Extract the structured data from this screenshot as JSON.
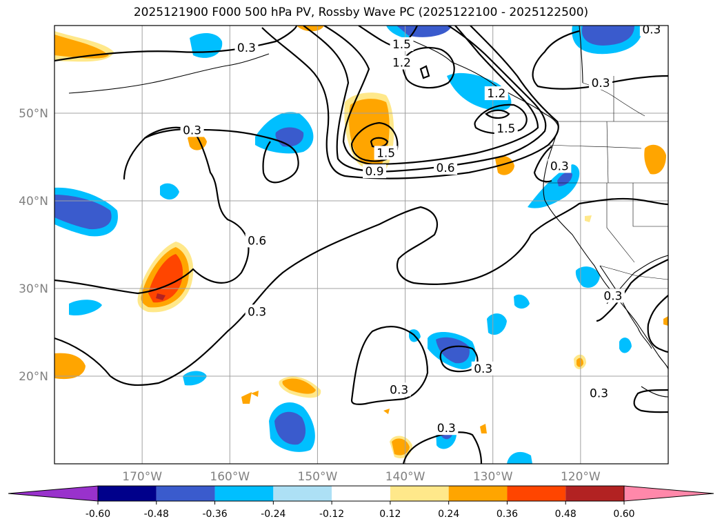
{
  "title": "2025121900 F000 500 hPa PV, Rossby Wave PC (2025122100 - 2025122500)",
  "map": {
    "lon_range": [
      -180,
      -110
    ],
    "lat_range": [
      10,
      60
    ],
    "lon_ticks": [
      {
        "value": -170,
        "label": "170°W"
      },
      {
        "value": -160,
        "label": "160°W"
      },
      {
        "value": -150,
        "label": "150°W"
      },
      {
        "value": -140,
        "label": "140°W"
      },
      {
        "value": -130,
        "label": "130°W"
      },
      {
        "value": -120,
        "label": "120°W"
      }
    ],
    "lat_ticks": [
      {
        "value": 20,
        "label": "20°N"
      },
      {
        "value": 30,
        "label": "30°N"
      },
      {
        "value": 40,
        "label": "40°N"
      },
      {
        "value": 50,
        "label": "50°N"
      }
    ],
    "tick_label_color": "#808080",
    "grid_color": "#a0a0a0"
  },
  "colorbar": {
    "ticks": [
      "-0.60",
      "-0.48",
      "-0.36",
      "-0.24",
      "-0.12",
      "0.12",
      "0.24",
      "0.36",
      "0.48",
      "0.60"
    ],
    "colors": [
      "#9932cc",
      "#00008b",
      "#3a5bcd",
      "#00bfff",
      "#ade0f5",
      "#ffffff",
      "#ffe88a",
      "#ffa500",
      "#ff4500",
      "#b22222",
      "#ff88aa"
    ]
  },
  "contour_labels": [
    {
      "text": "1.5",
      "lon": -140.4,
      "lat": 57.8
    },
    {
      "text": "1.2",
      "lon": -140.4,
      "lat": 55.7
    },
    {
      "text": "0.3",
      "lon": -158.1,
      "lat": 57.4
    },
    {
      "text": "0.3",
      "lon": -117.7,
      "lat": 53.4
    },
    {
      "text": "0.3",
      "lon": -111.9,
      "lat": 59.5
    },
    {
      "text": "1.2",
      "lon": -129.6,
      "lat": 52.2
    },
    {
      "text": "1.5",
      "lon": -128.5,
      "lat": 48.2
    },
    {
      "text": "0.3",
      "lon": -164.3,
      "lat": 48.0
    },
    {
      "text": "1.5",
      "lon": -142.2,
      "lat": 45.4
    },
    {
      "text": "0.9",
      "lon": -143.5,
      "lat": 43.3
    },
    {
      "text": "0.6",
      "lon": -135.4,
      "lat": 43.7
    },
    {
      "text": "0.3",
      "lon": -122.4,
      "lat": 43.9
    },
    {
      "text": "0.6",
      "lon": -156.9,
      "lat": 35.4
    },
    {
      "text": "0.3",
      "lon": -156.9,
      "lat": 27.3
    },
    {
      "text": "0.3",
      "lon": -131.1,
      "lat": 20.8
    },
    {
      "text": "0.3",
      "lon": -140.7,
      "lat": 18.4
    },
    {
      "text": "0.3",
      "lon": -135.3,
      "lat": 14.0
    },
    {
      "text": "0.3",
      "lon": -116.3,
      "lat": 29.1
    },
    {
      "text": "0.3",
      "lon": -117.9,
      "lat": 18.0
    }
  ],
  "legend_extend": "both"
}
